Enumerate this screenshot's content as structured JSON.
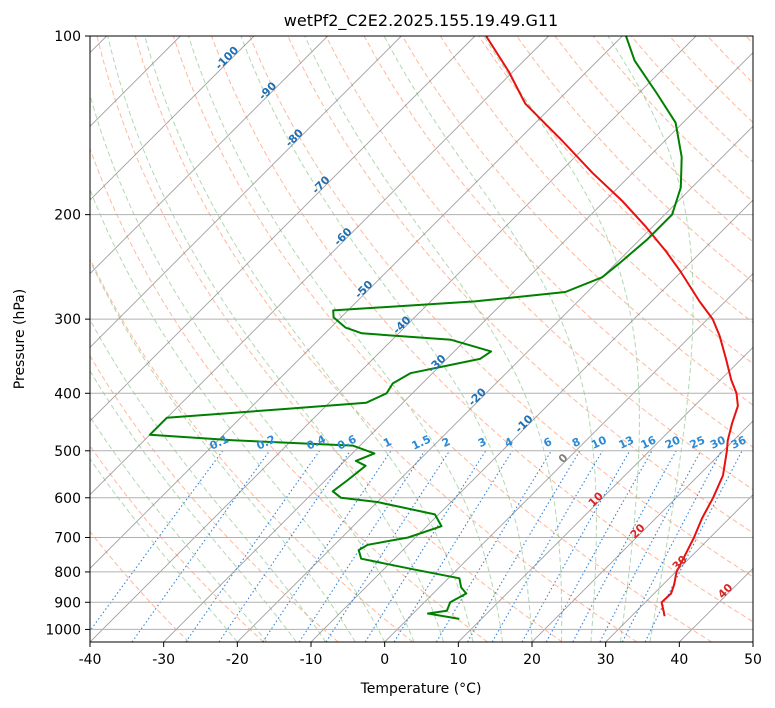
{
  "chart_data": {
    "type": "line",
    "title": "wetPf2_C2E2.2025.155.19.49.G11",
    "xlabel": "Temperature (°C)",
    "ylabel": "Pressure (hPa)",
    "xlim": [
      -40,
      50
    ],
    "ylim": [
      1050,
      100
    ],
    "y_scale": "log",
    "skew": "skew-T",
    "x_ticks": [
      -40,
      -30,
      -20,
      -10,
      0,
      10,
      20,
      30,
      40,
      50
    ],
    "y_ticks": [
      100,
      200,
      300,
      400,
      500,
      600,
      700,
      800,
      900,
      1000
    ],
    "grid": true,
    "temperature_color": "#e8110f",
    "dewpoint_color": "#008000",
    "dry_adiabat_color": "#ffa07a",
    "moist_adiabat_color": "#90c890",
    "mixing_ratio_color": "#1f77d4",
    "isotherm_color": "#808080",
    "series": [
      {
        "name": "",
        "role": "temperature",
        "points": [
          {
            "p": 950,
            "t": 34.5
          },
          {
            "p": 930,
            "t": 33.6
          },
          {
            "p": 900,
            "t": 32.2
          },
          {
            "p": 870,
            "t": 32.3
          },
          {
            "p": 840,
            "t": 31.5
          },
          {
            "p": 800,
            "t": 30.1
          },
          {
            "p": 750,
            "t": 29.0
          },
          {
            "p": 700,
            "t": 27.8
          },
          {
            "p": 650,
            "t": 26.3
          },
          {
            "p": 600,
            "t": 25.0
          },
          {
            "p": 550,
            "t": 23.3
          },
          {
            "p": 500,
            "t": 20.5
          },
          {
            "p": 480,
            "t": 19.2
          },
          {
            "p": 450,
            "t": 17.5
          },
          {
            "p": 420,
            "t": 15.9
          },
          {
            "p": 400,
            "t": 14.0
          },
          {
            "p": 380,
            "t": 11.5
          },
          {
            "p": 350,
            "t": 7.9
          },
          {
            "p": 320,
            "t": 3.9
          },
          {
            "p": 300,
            "t": 0.7
          },
          {
            "p": 280,
            "t": -3.5
          },
          {
            "p": 250,
            "t": -10.0
          },
          {
            "p": 230,
            "t": -15.0
          },
          {
            "p": 210,
            "t": -20.8
          },
          {
            "p": 190,
            "t": -27.5
          },
          {
            "p": 170,
            "t": -35.5
          },
          {
            "p": 150,
            "t": -44.0
          },
          {
            "p": 130,
            "t": -54.0
          },
          {
            "p": 115,
            "t": -60.5
          },
          {
            "p": 100,
            "t": -68.5
          }
        ]
      },
      {
        "name": "",
        "role": "dewpoint",
        "points": [
          {
            "p": 960,
            "t": 7.0
          },
          {
            "p": 940,
            "t": 2.0
          },
          {
            "p": 930,
            "t": 4.2
          },
          {
            "p": 900,
            "t": 3.5
          },
          {
            "p": 870,
            "t": 4.5
          },
          {
            "p": 850,
            "t": 3.0
          },
          {
            "p": 820,
            "t": 1.5
          },
          {
            "p": 790,
            "t": -6.5
          },
          {
            "p": 760,
            "t": -14.5
          },
          {
            "p": 735,
            "t": -16.0
          },
          {
            "p": 720,
            "t": -15.5
          },
          {
            "p": 700,
            "t": -11.0
          },
          {
            "p": 670,
            "t": -8.0
          },
          {
            "p": 640,
            "t": -10.5
          },
          {
            "p": 610,
            "t": -20.0
          },
          {
            "p": 600,
            "t": -25.5
          },
          {
            "p": 585,
            "t": -27.5
          },
          {
            "p": 560,
            "t": -27.0
          },
          {
            "p": 530,
            "t": -26.5
          },
          {
            "p": 520,
            "t": -28.5
          },
          {
            "p": 505,
            "t": -27.0
          },
          {
            "p": 490,
            "t": -31.0
          },
          {
            "p": 480,
            "t": -48.0
          },
          {
            "p": 470,
            "t": -60.0
          },
          {
            "p": 440,
            "t": -60.0
          },
          {
            "p": 425,
            "t": -45.0
          },
          {
            "p": 415,
            "t": -35.0
          },
          {
            "p": 400,
            "t": -33.5
          },
          {
            "p": 385,
            "t": -34.0
          },
          {
            "p": 370,
            "t": -33.0
          },
          {
            "p": 350,
            "t": -25.5
          },
          {
            "p": 340,
            "t": -25.0
          },
          {
            "p": 325,
            "t": -32.0
          },
          {
            "p": 317,
            "t": -45.0
          },
          {
            "p": 310,
            "t": -48.0
          },
          {
            "p": 298,
            "t": -51.0
          },
          {
            "p": 290,
            "t": -52.0
          },
          {
            "p": 280,
            "t": -34.0
          },
          {
            "p": 270,
            "t": -23.0
          },
          {
            "p": 255,
            "t": -20.0
          },
          {
            "p": 240,
            "t": -19.5
          },
          {
            "p": 220,
            "t": -19.0
          },
          {
            "p": 200,
            "t": -19.0
          },
          {
            "p": 180,
            "t": -21.5
          },
          {
            "p": 160,
            "t": -25.5
          },
          {
            "p": 140,
            "t": -31.0
          },
          {
            "p": 125,
            "t": -37.5
          },
          {
            "p": 110,
            "t": -45.0
          },
          {
            "p": 100,
            "t": -49.5
          }
        ]
      }
    ],
    "isotherm_labels": [
      {
        "text": "-100",
        "t": -100,
        "p": 110
      },
      {
        "text": "-90",
        "t": -90,
        "p": 125
      },
      {
        "text": "-80",
        "t": -80,
        "p": 150
      },
      {
        "text": "-70",
        "t": -70,
        "p": 180
      },
      {
        "text": "-60",
        "t": -60,
        "p": 220
      },
      {
        "text": "-50",
        "t": -50,
        "p": 270
      },
      {
        "text": "-40",
        "t": -40,
        "p": 310
      },
      {
        "text": "-30",
        "t": -30,
        "p": 360
      },
      {
        "text": "-20",
        "t": -20,
        "p": 410
      },
      {
        "text": "-10",
        "t": -10,
        "p": 455
      },
      {
        "text": "0",
        "t": 0,
        "p": 520
      },
      {
        "text": "10",
        "t": 10,
        "p": 610
      },
      {
        "text": "20",
        "t": 20,
        "p": 690
      },
      {
        "text": "30",
        "t": 30,
        "p": 780
      },
      {
        "text": "40",
        "t": 40,
        "p": 870
      }
    ],
    "mixing_ratio_labels": [
      "0.1",
      "0.2",
      "0.4",
      "0.6",
      "1",
      "1.5",
      "2",
      "3",
      "4",
      "6",
      "8",
      "10",
      "13",
      "16",
      "20",
      "25",
      "30",
      "36"
    ]
  }
}
